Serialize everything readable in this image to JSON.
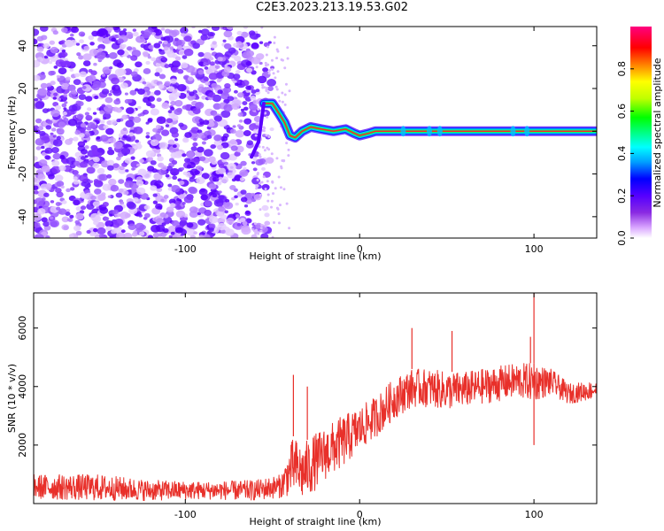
{
  "figure": {
    "title": "C2E3.2023.213.19.53.G02"
  },
  "chart_data": [
    {
      "id": "spectrogram",
      "type": "heatmap",
      "xlabel": "Height of straight line (km)",
      "ylabel": "Frequency (Hz)",
      "xlim": [
        -187,
        136
      ],
      "ylim": [
        -50,
        49
      ],
      "xticks": [
        -100,
        0,
        100
      ],
      "yticks": [
        -40,
        -20,
        0,
        20,
        40
      ],
      "colorbar": {
        "label": "Normalized spectral amplitude",
        "range": [
          0,
          1
        ],
        "ticks": [
          "0.0",
          "0.2",
          "0.4",
          "0.6",
          "0.8"
        ],
        "colors": [
          "#ffffff",
          "#d9a6ff",
          "#8a2be2",
          "#5500ff",
          "#0000ff",
          "#00a0ff",
          "#00ffff",
          "#00ff80",
          "#00ff00",
          "#c0ff00",
          "#ffff00",
          "#ff8000",
          "#ff0000",
          "#ff0080"
        ]
      },
      "track": [
        {
          "x": -55,
          "y": 13
        },
        {
          "x": -50,
          "y": 13
        },
        {
          "x": -46,
          "y": 8
        },
        {
          "x": -43,
          "y": 4
        },
        {
          "x": -40,
          "y": -2
        },
        {
          "x": -37,
          "y": -3
        },
        {
          "x": -33,
          "y": 0
        },
        {
          "x": -28,
          "y": 2
        },
        {
          "x": -22,
          "y": 1
        },
        {
          "x": -15,
          "y": 0
        },
        {
          "x": -8,
          "y": 1
        },
        {
          "x": -3,
          "y": -1
        },
        {
          "x": 0,
          "y": -2
        },
        {
          "x": 5,
          "y": -1
        },
        {
          "x": 9,
          "y": 0
        },
        {
          "x": 136,
          "y": 0
        }
      ]
    },
    {
      "id": "snr",
      "type": "line",
      "xlabel": "Height of straight line (km)",
      "ylabel": "SNR (10 * v/v)",
      "xlim": [
        -187,
        136
      ],
      "ylim": [
        0,
        7200
      ],
      "xticks": [
        -100,
        0,
        100
      ],
      "yticks": [
        2000,
        4000,
        6000
      ],
      "line_color": "#e8302a",
      "envelope": [
        {
          "x": -187,
          "low": 150,
          "high": 1000
        },
        {
          "x": -150,
          "low": 100,
          "high": 1000
        },
        {
          "x": -120,
          "low": 100,
          "high": 800
        },
        {
          "x": -90,
          "low": 150,
          "high": 750
        },
        {
          "x": -60,
          "low": 100,
          "high": 800
        },
        {
          "x": -45,
          "low": 200,
          "high": 1000
        },
        {
          "x": -38,
          "low": 300,
          "high": 2300
        },
        {
          "x": -33,
          "low": 100,
          "high": 2000
        },
        {
          "x": -28,
          "low": 300,
          "high": 2300
        },
        {
          "x": -20,
          "low": 800,
          "high": 2600
        },
        {
          "x": -10,
          "low": 1200,
          "high": 3000
        },
        {
          "x": 0,
          "low": 1800,
          "high": 3300
        },
        {
          "x": 10,
          "low": 2300,
          "high": 3700
        },
        {
          "x": 20,
          "low": 2900,
          "high": 4300
        },
        {
          "x": 30,
          "low": 3300,
          "high": 4600
        },
        {
          "x": 40,
          "low": 3300,
          "high": 4600
        },
        {
          "x": 50,
          "low": 3200,
          "high": 4500
        },
        {
          "x": 60,
          "low": 3300,
          "high": 4500
        },
        {
          "x": 70,
          "low": 3400,
          "high": 4600
        },
        {
          "x": 80,
          "low": 3500,
          "high": 4700
        },
        {
          "x": 90,
          "low": 3600,
          "high": 4800
        },
        {
          "x": 100,
          "low": 3500,
          "high": 4800
        },
        {
          "x": 110,
          "low": 3700,
          "high": 4600
        },
        {
          "x": 120,
          "low": 3400,
          "high": 4100
        },
        {
          "x": 136,
          "low": 3600,
          "high": 4200
        }
      ],
      "spikes": [
        {
          "x": -38,
          "y": 4400
        },
        {
          "x": -30,
          "y": 4000
        },
        {
          "x": 30,
          "y": 6000
        },
        {
          "x": 53,
          "y": 5900
        },
        {
          "x": 98,
          "y": 5700
        },
        {
          "x": 100,
          "y": 7200
        },
        {
          "x": 100,
          "y": 2000
        }
      ]
    }
  ]
}
